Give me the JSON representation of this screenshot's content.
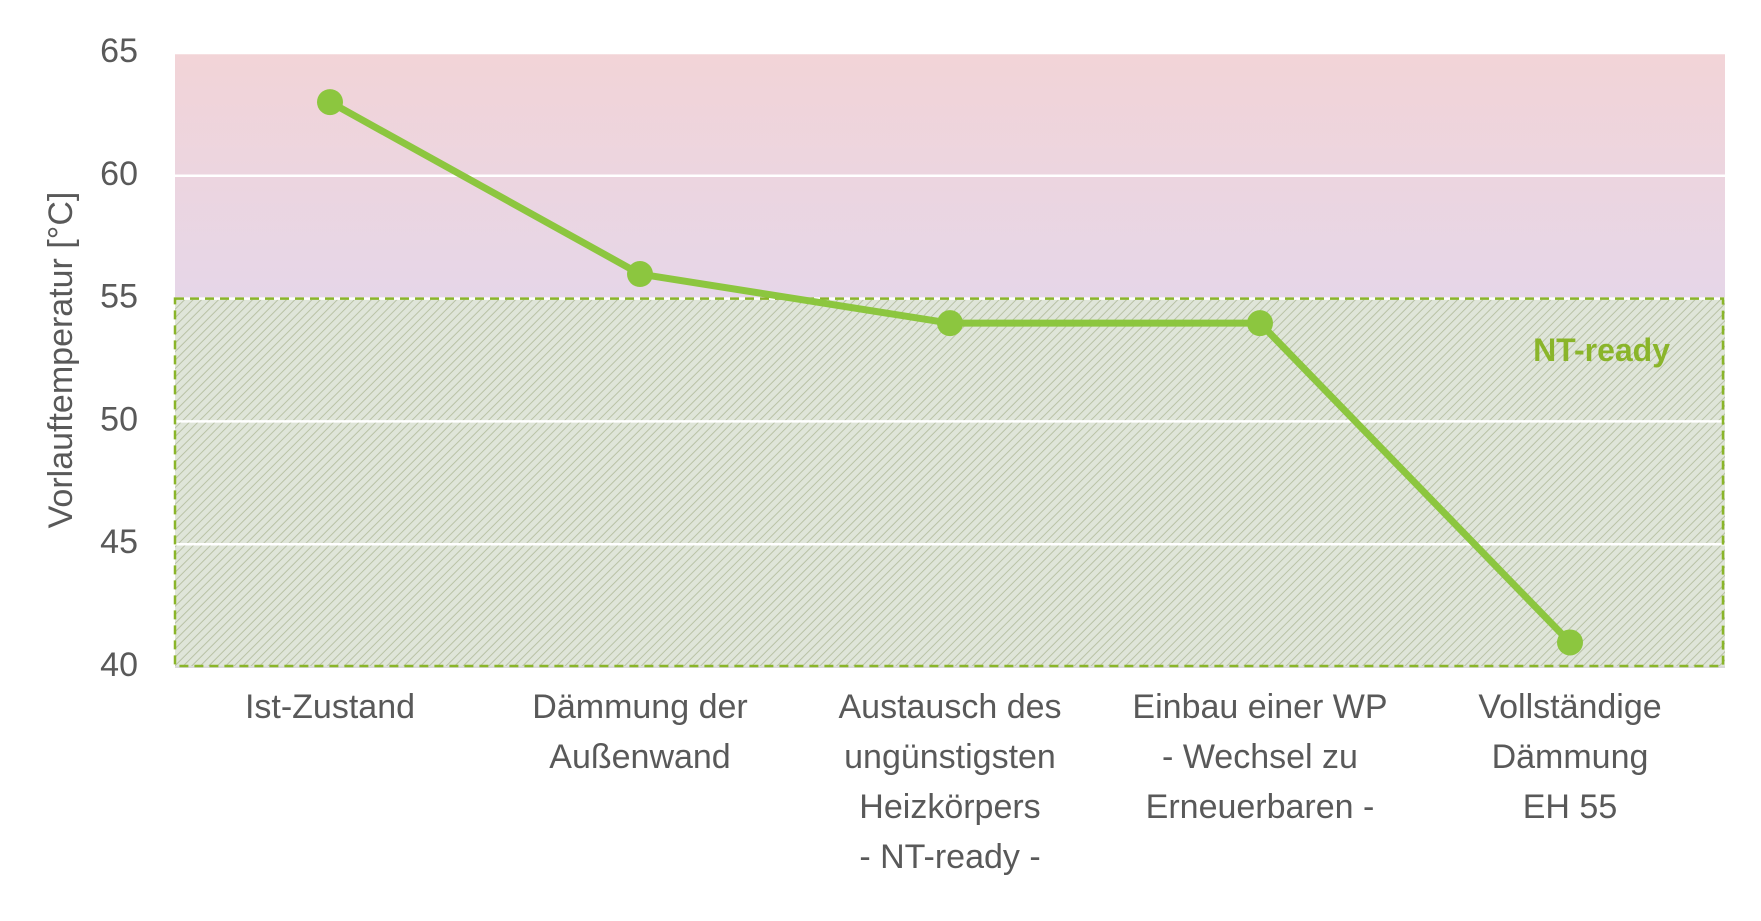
{
  "chart_data": {
    "type": "line",
    "categories": [
      [
        "Ist-Zustand"
      ],
      [
        "Dämmung der",
        "Außenwand"
      ],
      [
        "Austausch des",
        "ungünstigsten",
        "Heizkörpers",
        "- NT-ready -"
      ],
      [
        "Einbau einer WP",
        "- Wechsel zu",
        "Erneuerbaren -"
      ],
      [
        "Vollständige",
        "Dämmung",
        "EH 55"
      ]
    ],
    "series": [
      {
        "values": [
          63,
          56,
          54,
          54,
          41
        ],
        "color": "#8cc63f"
      }
    ],
    "ylabel": "Vorlauftemperatur [°C]",
    "ylim": [
      40,
      65
    ],
    "yticks": [
      40,
      45,
      50,
      55,
      60,
      65
    ],
    "grid": true,
    "bands": [
      {
        "from": 55,
        "to": 65,
        "color_top": "#f2d4d7",
        "color_bottom": "#e6d6e8"
      },
      {
        "from": 40,
        "to": 55,
        "label": "NT-ready",
        "pattern": "hatched",
        "border_color": "#8ab52a",
        "color": "#dde4d6"
      }
    ],
    "colors": {
      "line": "#8cc63f",
      "grid": "#ffffff",
      "text": "#595959",
      "zone_label": "#8ab52a"
    }
  }
}
